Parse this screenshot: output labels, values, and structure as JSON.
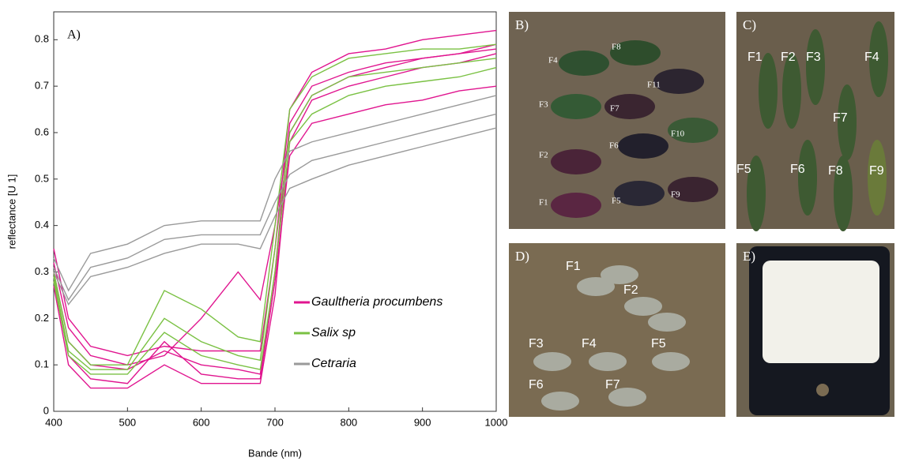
{
  "chart_data": {
    "type": "line",
    "panel_label": "A)",
    "x_label": "Bande (nm)",
    "y_label": "reflectance [U 1]",
    "x": [
      400,
      420,
      450,
      500,
      550,
      600,
      650,
      680,
      700,
      720,
      750,
      800,
      850,
      900,
      950,
      1000
    ],
    "xlim": [
      400,
      1000
    ],
    "xticks": [
      400,
      500,
      600,
      700,
      800,
      900,
      1000
    ],
    "ylim": [
      0,
      0.86
    ],
    "yticks": [
      0,
      0.1,
      0.2,
      0.3,
      0.4,
      0.5,
      0.6,
      0.7,
      0.8
    ],
    "series": [
      {
        "name": "Gaultheria procumbens",
        "color": "#e0158f",
        "lines": [
          [
            0.35,
            0.2,
            0.14,
            0.12,
            0.14,
            0.13,
            0.13,
            0.13,
            0.35,
            0.65,
            0.73,
            0.77,
            0.78,
            0.8,
            0.81,
            0.82
          ],
          [
            0.3,
            0.15,
            0.1,
            0.09,
            0.13,
            0.1,
            0.09,
            0.08,
            0.3,
            0.62,
            0.7,
            0.73,
            0.75,
            0.76,
            0.77,
            0.78
          ],
          [
            0.28,
            0.12,
            0.07,
            0.06,
            0.15,
            0.08,
            0.07,
            0.07,
            0.28,
            0.55,
            0.62,
            0.64,
            0.66,
            0.67,
            0.69,
            0.7
          ],
          [
            0.32,
            0.18,
            0.12,
            0.1,
            0.12,
            0.2,
            0.3,
            0.24,
            0.4,
            0.6,
            0.68,
            0.72,
            0.74,
            0.76,
            0.77,
            0.79
          ],
          [
            0.27,
            0.1,
            0.05,
            0.05,
            0.1,
            0.06,
            0.06,
            0.06,
            0.25,
            0.58,
            0.67,
            0.7,
            0.72,
            0.74,
            0.75,
            0.77
          ]
        ]
      },
      {
        "name": "Salix sp",
        "color": "#7ac143",
        "lines": [
          [
            0.3,
            0.15,
            0.1,
            0.1,
            0.26,
            0.22,
            0.16,
            0.15,
            0.4,
            0.65,
            0.72,
            0.76,
            0.77,
            0.78,
            0.78,
            0.79
          ],
          [
            0.29,
            0.13,
            0.09,
            0.09,
            0.2,
            0.15,
            0.12,
            0.11,
            0.35,
            0.6,
            0.68,
            0.72,
            0.73,
            0.74,
            0.75,
            0.76
          ],
          [
            0.28,
            0.12,
            0.08,
            0.08,
            0.17,
            0.12,
            0.1,
            0.09,
            0.3,
            0.58,
            0.64,
            0.68,
            0.7,
            0.71,
            0.72,
            0.74
          ]
        ]
      },
      {
        "name": "Cetraria",
        "color": "#9a9a9a",
        "lines": [
          [
            0.33,
            0.26,
            0.34,
            0.36,
            0.4,
            0.41,
            0.41,
            0.41,
            0.5,
            0.56,
            0.58,
            0.6,
            0.62,
            0.64,
            0.66,
            0.68
          ],
          [
            0.31,
            0.24,
            0.31,
            0.33,
            0.37,
            0.38,
            0.38,
            0.38,
            0.45,
            0.51,
            0.54,
            0.56,
            0.58,
            0.6,
            0.62,
            0.64
          ],
          [
            0.3,
            0.23,
            0.29,
            0.31,
            0.34,
            0.36,
            0.36,
            0.35,
            0.42,
            0.48,
            0.5,
            0.53,
            0.55,
            0.57,
            0.59,
            0.61
          ]
        ]
      }
    ]
  },
  "panels": [
    {
      "label": "B)",
      "items": [
        "F4",
        "F8",
        "F11",
        "F3",
        "F7",
        "F6",
        "F10",
        "F2",
        "F1",
        "F5",
        "F9"
      ]
    },
    {
      "label": "C)",
      "items": [
        "F1",
        "F2",
        "F3",
        "F4",
        "F7",
        "F5",
        "F6",
        "F8",
        "F9"
      ]
    },
    {
      "label": "D)",
      "items": [
        "F1",
        "F2",
        "F3",
        "F4",
        "F5",
        "F6",
        "F7"
      ]
    },
    {
      "label": "E)",
      "items": []
    }
  ]
}
